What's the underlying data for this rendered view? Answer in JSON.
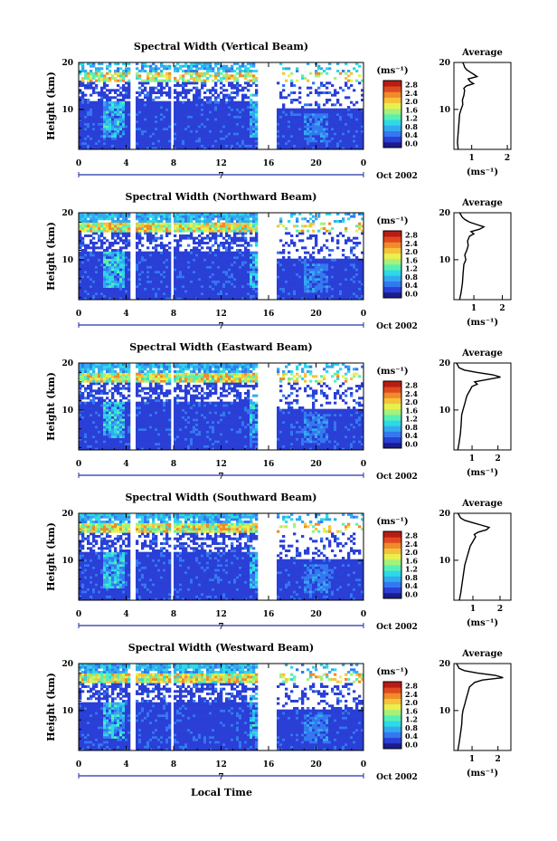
{
  "figure": {
    "xlabel": "Local Time",
    "colorbar_ticks": [
      "2.8",
      "2.4",
      "2.0",
      "1.6",
      "1.2",
      "0.8",
      "0.4",
      "0.0"
    ],
    "colorbar_unit": "(ms⁻¹)",
    "average_title": "Average",
    "average_xlabel": "(ms⁻¹)",
    "date_label": "Oct 2002",
    "day_label": "7",
    "colormap": [
      "#1c1c8c",
      "#2a3fd6",
      "#3478f0",
      "#32aaf0",
      "#2ed8e6",
      "#57f0b4",
      "#a6f07c",
      "#e8f04e",
      "#f5c23a",
      "#f08a2a",
      "#e04a20",
      "#b81c14"
    ]
  },
  "chart_data": [
    {
      "type": "heatmap",
      "title": "Spectral Width (Vertical Beam)",
      "xlabel": "Local Time",
      "ylabel": "Height (km)",
      "x_ticks": [
        "0",
        "4",
        "8",
        "12",
        "16",
        "20",
        "0"
      ],
      "xlim": [
        0,
        24
      ],
      "y_ticks": [
        "10",
        "20"
      ],
      "ylim": [
        1.5,
        20
      ],
      "colorbar_range": [
        0.0,
        2.8
      ],
      "data_gaps_hours": [
        [
          4.3,
          4.7
        ],
        [
          7.8,
          8.1
        ],
        [
          15.2,
          16.7
        ]
      ],
      "average_profile": {
        "x_ticks": [
          "1",
          "2"
        ],
        "xlim": [
          0.5,
          2.1
        ],
        "height_km": [
          1.5,
          3,
          5,
          7,
          9,
          10,
          11,
          12,
          13,
          14,
          14.5,
          15,
          15.5,
          16,
          16.5,
          17,
          17.5,
          18,
          18.5,
          19,
          19.5,
          20
        ],
        "width_ms": [
          0.62,
          0.6,
          0.62,
          0.64,
          0.66,
          0.7,
          0.75,
          0.74,
          0.78,
          0.8,
          0.78,
          0.85,
          1.05,
          0.95,
          0.9,
          1.15,
          1.05,
          0.95,
          0.85,
          0.8,
          0.78,
          0.75
        ]
      }
    },
    {
      "type": "heatmap",
      "title": "Spectral Width (Northward Beam)",
      "xlabel": "Local Time",
      "ylabel": "Height (km)",
      "x_ticks": [
        "0",
        "4",
        "8",
        "12",
        "16",
        "20",
        "0"
      ],
      "xlim": [
        0,
        24
      ],
      "y_ticks": [
        "10",
        "20"
      ],
      "ylim": [
        1.5,
        20
      ],
      "colorbar_range": [
        0.0,
        2.8
      ],
      "data_gaps_hours": [
        [
          4.3,
          4.7
        ],
        [
          7.8,
          8.1
        ],
        [
          15.2,
          16.7
        ]
      ],
      "average_profile": {
        "x_ticks": [
          "1",
          "2"
        ],
        "xlim": [
          0.3,
          2.3
        ],
        "height_km": [
          1.5,
          3,
          5,
          7,
          9,
          10,
          11,
          12,
          13,
          14,
          15,
          15.5,
          16,
          16.5,
          17,
          17.5,
          18,
          18.5,
          19,
          19.5,
          20
        ],
        "width_ms": [
          0.5,
          0.55,
          0.6,
          0.62,
          0.65,
          0.72,
          0.68,
          0.75,
          0.8,
          0.78,
          0.85,
          1.0,
          0.9,
          1.2,
          1.35,
          1.1,
          0.85,
          0.7,
          0.6,
          0.55,
          0.5
        ]
      }
    },
    {
      "type": "heatmap",
      "title": "Spectral Width (Eastward Beam)",
      "xlabel": "Local Time",
      "ylabel": "Height (km)",
      "x_ticks": [
        "0",
        "4",
        "8",
        "12",
        "16",
        "20",
        "0"
      ],
      "xlim": [
        0,
        24
      ],
      "y_ticks": [
        "10",
        "20"
      ],
      "ylim": [
        1.5,
        20
      ],
      "colorbar_range": [
        0.0,
        2.8
      ],
      "data_gaps_hours": [
        [
          4.3,
          4.7
        ],
        [
          7.8,
          8.1
        ],
        [
          15.2,
          16.7
        ]
      ],
      "average_profile": {
        "x_ticks": [
          "1",
          "2"
        ],
        "xlim": [
          0.3,
          2.5
        ],
        "height_km": [
          1.5,
          3,
          5,
          7,
          9,
          10,
          11,
          12,
          13,
          14,
          15,
          15.5,
          16,
          16.5,
          17,
          17.5,
          18,
          18.5,
          19,
          19.5,
          20
        ],
        "width_ms": [
          0.45,
          0.5,
          0.55,
          0.58,
          0.6,
          0.65,
          0.7,
          0.75,
          0.8,
          0.9,
          1.0,
          1.2,
          1.1,
          1.6,
          2.1,
          1.8,
          1.2,
          0.7,
          0.5,
          0.45,
          0.4
        ]
      }
    },
    {
      "type": "heatmap",
      "title": "Spectral Width (Southward Beam)",
      "xlabel": "Local Time",
      "ylabel": "Height (km)",
      "x_ticks": [
        "0",
        "4",
        "8",
        "12",
        "16",
        "20",
        "0"
      ],
      "xlim": [
        0,
        24
      ],
      "y_ticks": [
        "10",
        "20"
      ],
      "ylim": [
        1.5,
        20
      ],
      "colorbar_range": [
        0.0,
        2.8
      ],
      "data_gaps_hours": [
        [
          4.3,
          4.7
        ],
        [
          7.8,
          8.1
        ],
        [
          15.2,
          16.7
        ]
      ],
      "average_profile": {
        "x_ticks": [
          "1",
          "2"
        ],
        "xlim": [
          0.3,
          2.4
        ],
        "height_km": [
          1.5,
          3,
          5,
          7,
          9,
          10,
          11,
          12,
          13,
          14,
          15,
          15.5,
          16,
          16.5,
          17,
          17.5,
          18,
          18.5,
          19,
          19.5,
          20
        ],
        "width_ms": [
          0.5,
          0.55,
          0.6,
          0.65,
          0.7,
          0.75,
          0.8,
          0.85,
          0.9,
          1.0,
          1.1,
          1.05,
          1.2,
          1.5,
          1.6,
          1.3,
          1.0,
          0.7,
          0.55,
          0.5,
          0.45
        ]
      }
    },
    {
      "type": "heatmap",
      "title": "Spectral Width (Westward Beam)",
      "xlabel": "Local Time",
      "ylabel": "Height (km)",
      "x_ticks": [
        "0",
        "4",
        "8",
        "12",
        "16",
        "20",
        "0"
      ],
      "xlim": [
        0,
        24
      ],
      "y_ticks": [
        "10",
        "20"
      ],
      "ylim": [
        1.5,
        20
      ],
      "colorbar_range": [
        0.0,
        2.8
      ],
      "data_gaps_hours": [
        [
          4.3,
          4.7
        ],
        [
          7.8,
          8.1
        ],
        [
          15.2,
          16.7
        ]
      ],
      "average_profile": {
        "x_ticks": [
          "1",
          "2"
        ],
        "xlim": [
          0.3,
          2.5
        ],
        "height_km": [
          1.5,
          3,
          5,
          7,
          9,
          10,
          11,
          12,
          13,
          14,
          15,
          15.5,
          16,
          16.5,
          17,
          17.5,
          18,
          18.5,
          19,
          19.5,
          20
        ],
        "width_ms": [
          0.45,
          0.5,
          0.55,
          0.6,
          0.62,
          0.65,
          0.7,
          0.75,
          0.8,
          0.85,
          0.9,
          1.0,
          1.1,
          1.4,
          2.2,
          1.9,
          1.2,
          0.7,
          0.5,
          0.45,
          0.4
        ]
      }
    }
  ]
}
